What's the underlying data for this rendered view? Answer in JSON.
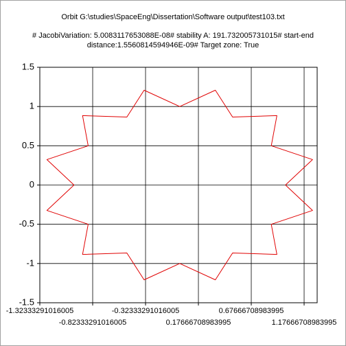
{
  "chart_data": {
    "type": "line",
    "title": "Orbit G:\\studies\\SpaceEng\\Dissertation\\Software output\\test103.txt",
    "subtitle": [
      "# JacobiVariation: 5.0083117653088E-08# stability A: 191.732005731015# start-end",
      "distance:1.5560814594946E-09# Target zone: True"
    ],
    "series": [
      {
        "color": "#e00000",
        "x": [
          1.0,
          1.256,
          0.866,
          0.919,
          0.5,
          0.337,
          0,
          -0.337,
          -0.5,
          -0.919,
          -0.866,
          -1.256,
          -1.0,
          -1.256,
          -0.866,
          -0.919,
          -0.5,
          -0.337,
          0,
          0.337,
          0.5,
          0.919,
          0.866,
          1.256,
          1.0
        ],
        "values": [
          0,
          0.324,
          0.5,
          0.884,
          0.866,
          1.208,
          1.0,
          1.208,
          0.866,
          0.884,
          0.5,
          0.324,
          0,
          -0.324,
          -0.5,
          -0.884,
          -0.866,
          -1.208,
          -1.0,
          -1.208,
          -0.866,
          -0.884,
          -0.5,
          -0.324,
          0
        ]
      }
    ],
    "xlim": [
      -1.32333291016005,
      1.3
    ],
    "xticks": [
      -1.32333291016005,
      -0.82333291016005,
      -0.32333291016005,
      0.17666708983995,
      0.67666708983995,
      1.17666708983995
    ],
    "ylim": [
      -1.5,
      1.5
    ],
    "yticks": [
      -1.5,
      -1,
      -0.5,
      0,
      0.5,
      1,
      1.5
    ],
    "grid": true
  }
}
